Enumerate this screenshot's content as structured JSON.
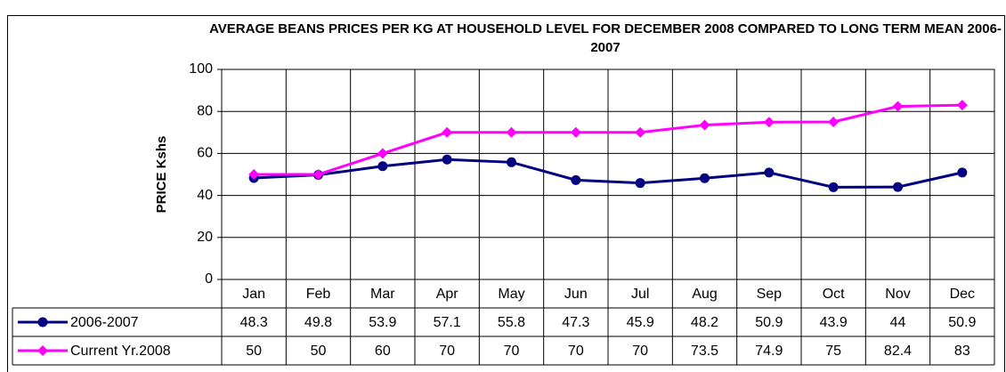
{
  "chart_data": {
    "type": "line",
    "title": "AVERAGE BEANS PRICES PER KG AT HOUSEHOLD LEVEL FOR DECEMBER 2008 COMPARED TO LONG TERM MEAN 2006-2007",
    "y_label": "PRICE Kshs",
    "categories": [
      "Jan",
      "Feb",
      "Mar",
      "Apr",
      "May",
      "Jun",
      "Jul",
      "Aug",
      "Sep",
      "Oct",
      "Nov",
      "Dec"
    ],
    "series": [
      {
        "name": "2006-2007",
        "color": "#000080",
        "marker": "circle",
        "values": [
          48.3,
          49.8,
          53.9,
          57.1,
          55.8,
          47.3,
          45.9,
          48.2,
          50.9,
          43.9,
          44,
          50.9
        ]
      },
      {
        "name": "Current Yr.2008",
        "color": "#ff00ff",
        "marker": "diamond",
        "values": [
          50,
          50,
          60,
          70,
          70,
          70,
          70,
          73.5,
          74.9,
          75,
          82.4,
          83
        ]
      }
    ],
    "ylim": [
      0,
      100
    ],
    "yticks": [
      0,
      20,
      40,
      60,
      80,
      100
    ],
    "grid": true,
    "data_table": true
  }
}
